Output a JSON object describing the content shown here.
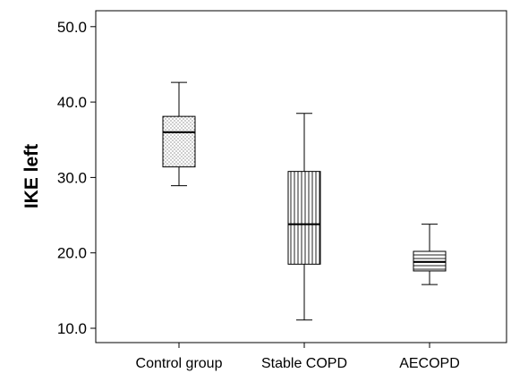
{
  "chart_data": {
    "type": "box",
    "title": "",
    "xlabel": "",
    "ylabel": "IKE left",
    "ylim": [
      8.0,
      52.0
    ],
    "yticks": [
      "10.0",
      "20.0",
      "30.0",
      "40.0",
      "50.0"
    ],
    "grid": false,
    "categories": [
      "Control group",
      "Stable COPD",
      "AECOPD"
    ],
    "boxes": [
      {
        "category": "Control group",
        "min": 28.9,
        "q1": 31.4,
        "median": 36.0,
        "q3": 38.1,
        "max": 42.6,
        "fill": "dotted"
      },
      {
        "category": "Stable COPD",
        "min": 11.1,
        "q1": 18.5,
        "median": 23.8,
        "q3": 30.8,
        "max": 38.5,
        "fill": "vertical-lines"
      },
      {
        "category": "AECOPD",
        "min": 15.8,
        "q1": 17.6,
        "median": 18.8,
        "q3": 20.2,
        "max": 23.8,
        "fill": "horizontal-lines"
      }
    ]
  },
  "colors": {
    "stroke": "#000000",
    "background": "#ffffff"
  }
}
